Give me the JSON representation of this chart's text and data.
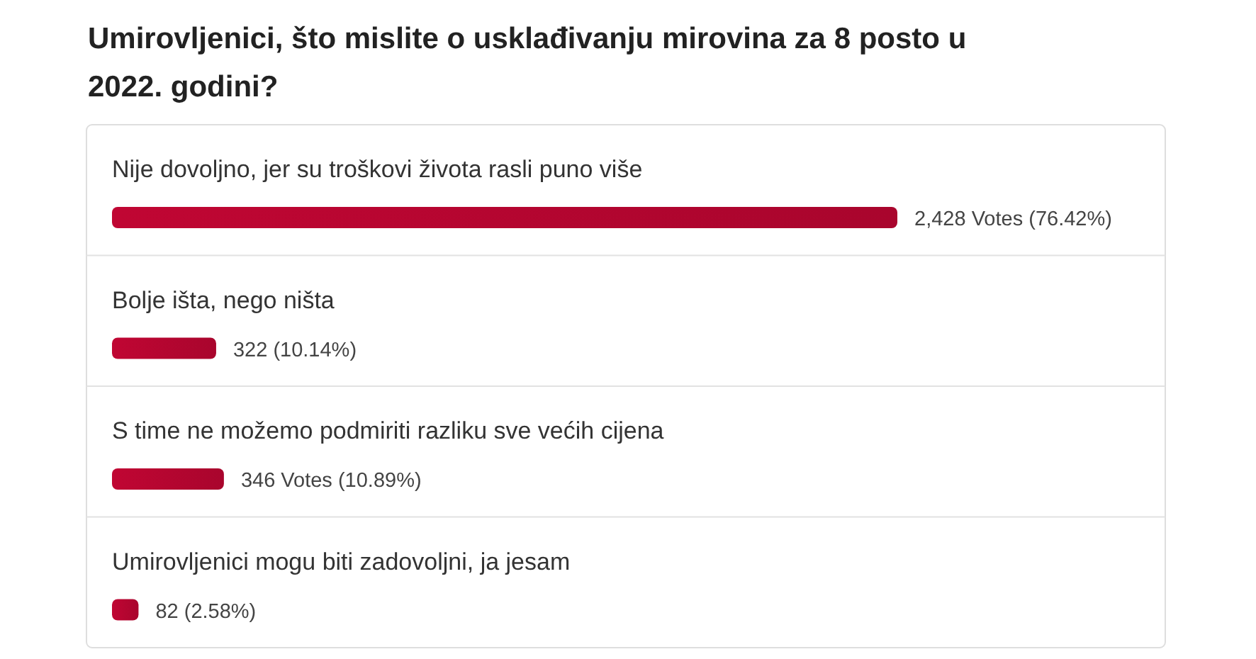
{
  "chart_data": {
    "type": "bar",
    "orientation": "horizontal",
    "title": "Umirovljenici, što mislite o usklađivanju mirovina za 8 posto u 2022. godini?",
    "categories": [
      "Nije dovoljno, jer su troškovi života rasli puno više",
      "Bolje išta, nego ništa",
      "S time ne možemo podmiriti razliku sve većih cijena",
      "Umirovljenici mogu biti zadovoljni, ja jesam"
    ],
    "values": [
      2428,
      322,
      346,
      82
    ],
    "value_labels": [
      "2,428 Votes (76.42%)",
      "322 (10.14%)",
      "346 Votes (10.89%)",
      "82 (2.58%)"
    ],
    "color": "#c00633"
  }
}
